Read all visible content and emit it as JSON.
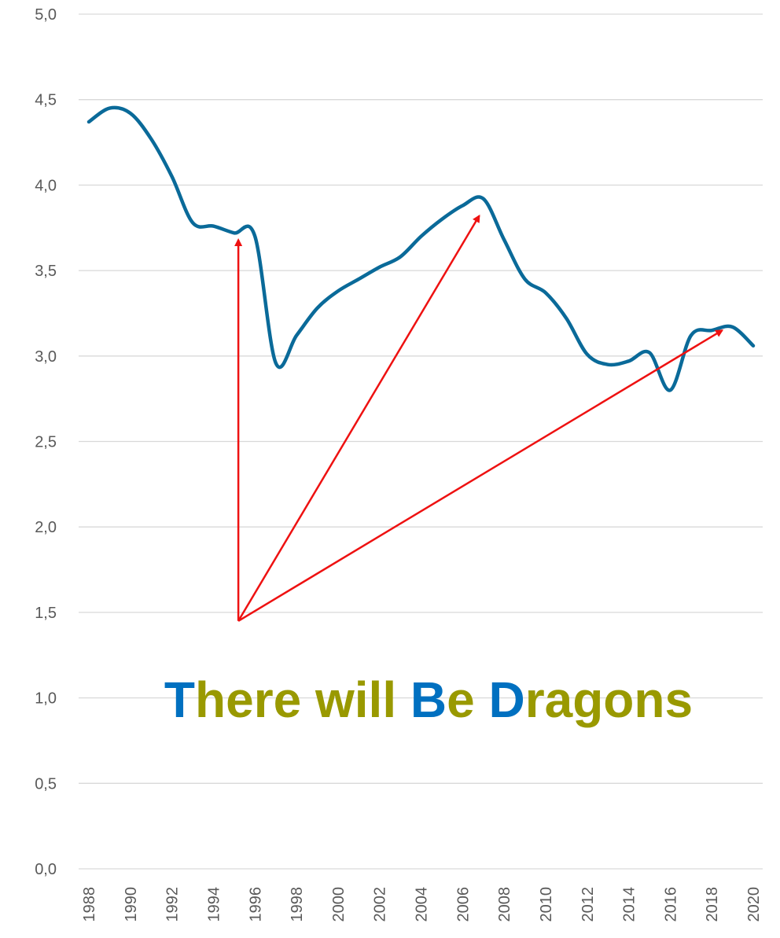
{
  "chart_data": {
    "type": "line",
    "x": [
      1988,
      1989,
      1990,
      1991,
      1992,
      1993,
      1994,
      1995,
      1996,
      1997,
      1998,
      1999,
      2000,
      2001,
      2002,
      2003,
      2004,
      2005,
      2006,
      2007,
      2008,
      2009,
      2010,
      2011,
      2012,
      2013,
      2014,
      2015,
      2016,
      2017,
      2018,
      2019,
      2020
    ],
    "series": [
      {
        "values": [
          4.37,
          4.45,
          4.42,
          4.27,
          4.05,
          3.78,
          3.76,
          3.72,
          3.7,
          2.96,
          3.12,
          3.28,
          3.38,
          3.45,
          3.52,
          3.58,
          3.7,
          3.8,
          3.88,
          3.92,
          3.68,
          3.45,
          3.37,
          3.22,
          3.01,
          2.95,
          2.97,
          3.02,
          2.8,
          3.12,
          3.15,
          3.17,
          3.06
        ],
        "color": "#0a6a99"
      }
    ],
    "xlabel": "",
    "ylabel": "",
    "title": "",
    "ylim": [
      0,
      5
    ],
    "yticks": [
      "0,0",
      "0,5",
      "1,0",
      "1,5",
      "2,0",
      "2,5",
      "3,0",
      "3,5",
      "4,0",
      "4,5",
      "5,0"
    ],
    "xticks": [
      "1988",
      "1990",
      "1992",
      "1994",
      "1996",
      "1998",
      "2000",
      "2002",
      "2004",
      "2006",
      "2008",
      "2010",
      "2012",
      "2014",
      "2016",
      "2018",
      "2020"
    ],
    "grid": true,
    "legend": "none",
    "annotations": {
      "arrow_color": "#ee1111",
      "arrows": [
        {
          "from": [
            1995.2,
            1.45
          ],
          "to": [
            1995.2,
            3.68
          ]
        },
        {
          "from": [
            1995.2,
            1.45
          ],
          "to": [
            2006.8,
            3.82
          ]
        },
        {
          "from": [
            1995.2,
            1.45
          ],
          "to": [
            2018.5,
            3.15
          ]
        }
      ],
      "banner": {
        "parts": [
          {
            "text": "T",
            "color": "#0070c0"
          },
          {
            "text": "here will ",
            "color": "#999900"
          },
          {
            "text": "B",
            "color": "#0070c0"
          },
          {
            "text": "e ",
            "color": "#999900"
          },
          {
            "text": "D",
            "color": "#0070c0"
          },
          {
            "text": "ragons",
            "color": "#999900"
          }
        ]
      }
    }
  }
}
